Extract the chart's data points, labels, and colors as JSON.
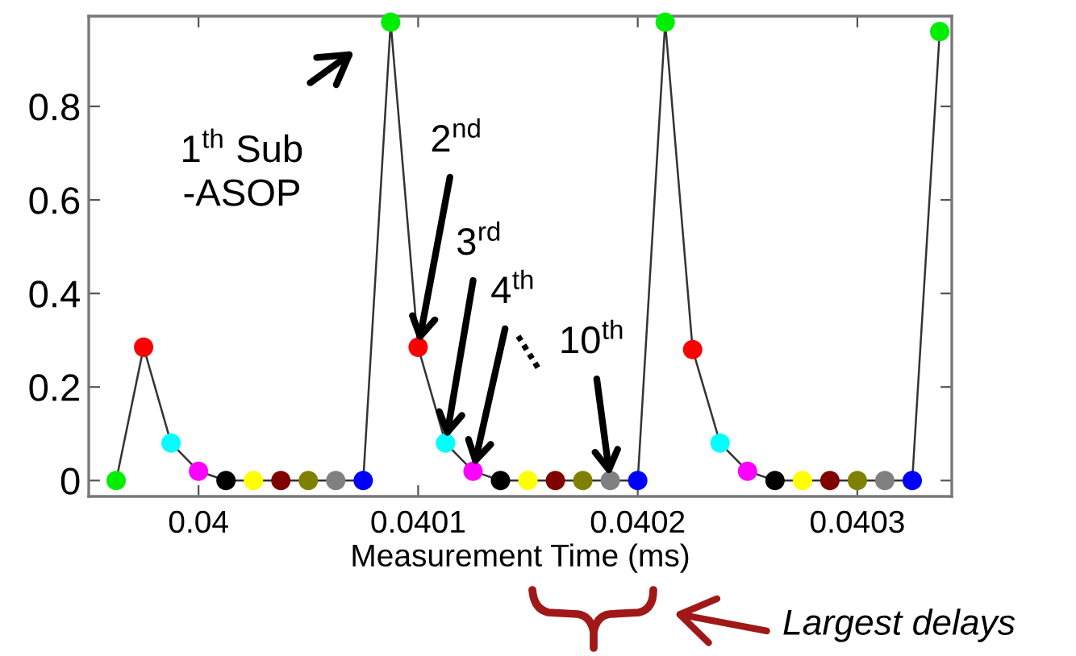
{
  "chart_data": {
    "type": "line",
    "xlabel": "Measurement Time (ms)",
    "x": [
      0.0399625,
      0.039975,
      0.0399875,
      0.04,
      0.0400125,
      0.040025,
      0.0400375,
      0.04005,
      0.0400625,
      0.040075,
      0.0400875,
      0.0401,
      0.0401125,
      0.040125,
      0.0401375,
      0.04015,
      0.0401625,
      0.040175,
      0.0401875,
      0.0402,
      0.0402125,
      0.040225,
      0.0402375,
      0.04025,
      0.0402625,
      0.040275,
      0.0402875,
      0.0403,
      0.0403125,
      0.040325,
      0.0403375
    ],
    "series": [
      {
        "color": "#333333",
        "values": [
          0,
          0.285,
          0.08,
          0.02,
          0,
          0,
          0,
          0,
          0,
          0,
          0.98,
          0.285,
          0.08,
          0.02,
          0,
          0,
          0,
          0,
          0,
          0,
          0.98,
          0.28,
          0.08,
          0.02,
          0,
          0,
          0,
          0,
          0,
          0,
          0.96
        ],
        "colors": [
          "#00ee00",
          "#ff0000",
          "#00ffff",
          "#ff00ff",
          "#000000",
          "#ffff00",
          "#800000",
          "#808000",
          "#808080",
          "#0000ff",
          "#00ee00",
          "#ff0000",
          "#00ffff",
          "#ff00ff",
          "#000000",
          "#ffff00",
          "#800000",
          "#808000",
          "#808080",
          "#0000ff",
          "#00ee00",
          "#ff0000",
          "#00ffff",
          "#ff00ff",
          "#000000",
          "#ffff00",
          "#800000",
          "#808000",
          "#808080",
          "#0000ff",
          "#00ee00"
        ]
      }
    ],
    "marker": "circle",
    "line_style": "solid",
    "xlim": [
      0.03995,
      0.040343
    ],
    "ylim": [
      -0.034,
      0.993
    ],
    "xticks": [
      0.04,
      0.0401,
      0.0402,
      0.0403
    ],
    "yticks": [
      0,
      0.2,
      0.4,
      0.6,
      0.8
    ],
    "grid": false,
    "annotations": [
      "1$^{th}$ Sub\n-ASOP",
      {
        "text": "2$^{nd}$",
        "x": 0.0401,
        "y": 0.285
      },
      {
        "text": "3$^{rd}$",
        "x": 0.0401125,
        "y": 0.08
      },
      {
        "text": "4$^{th}$",
        "x": 0.040125,
        "y": 0.02
      },
      "....",
      {
        "text": "10$^{th}$",
        "x": 0.0401875,
        "y": 0
      },
      "Largest delays"
    ]
  }
}
